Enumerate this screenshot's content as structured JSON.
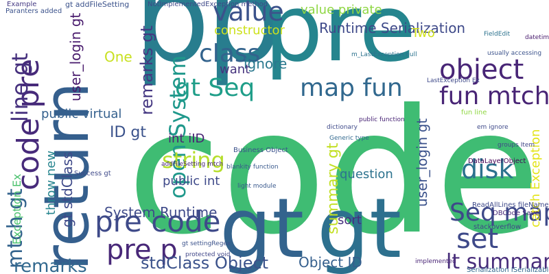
{
  "words": [
    "code",
    "p",
    "p",
    "pre",
    "return",
    "gt",
    "gt",
    "pre code",
    "pre p",
    "value",
    "class",
    "object",
    "Seq map",
    "set",
    "disk",
    "lt summary",
    "stdClass Object",
    "Object ID",
    "map fun",
    "fun mtch",
    "gt Seq",
    "open System",
    "string",
    "code pre",
    "line gt",
    "mtch gt",
    "remarks",
    "remarks gt",
    "Runtime Serialization",
    "value private",
    "constructor",
    "Two",
    "ignore",
    "want",
    "One",
    "public virtual",
    "ID gt",
    "int iID",
    "public int",
    "System Runtime",
    "summary gt",
    "user_login gt",
    "user_login gt",
    "question",
    "sort",
    "catch Exception",
    "throw new",
    "Exception Ex",
    "gt stdClass",
    "gt addFileSetting",
    "NotImplementedException method",
    "Example",
    "Paranters added",
    "DataLayerObject",
    "Business Object",
    "light module",
    "blankity function",
    "ReadAllLines fileName",
    "stackoverflow",
    "Serialization ISerializable",
    "Success gt",
    "addFileSetting mtch",
    "gt settingRegex",
    "protected void",
    "implemented",
    "dictionary",
    "Generic type",
    "public function",
    "DBCode Save",
    "LastException Ex",
    "m_LastException null",
    "FieldEdit",
    "datetime",
    "usually accessing",
    "groups Item",
    "fun line",
    "em ignore"
  ]
}
